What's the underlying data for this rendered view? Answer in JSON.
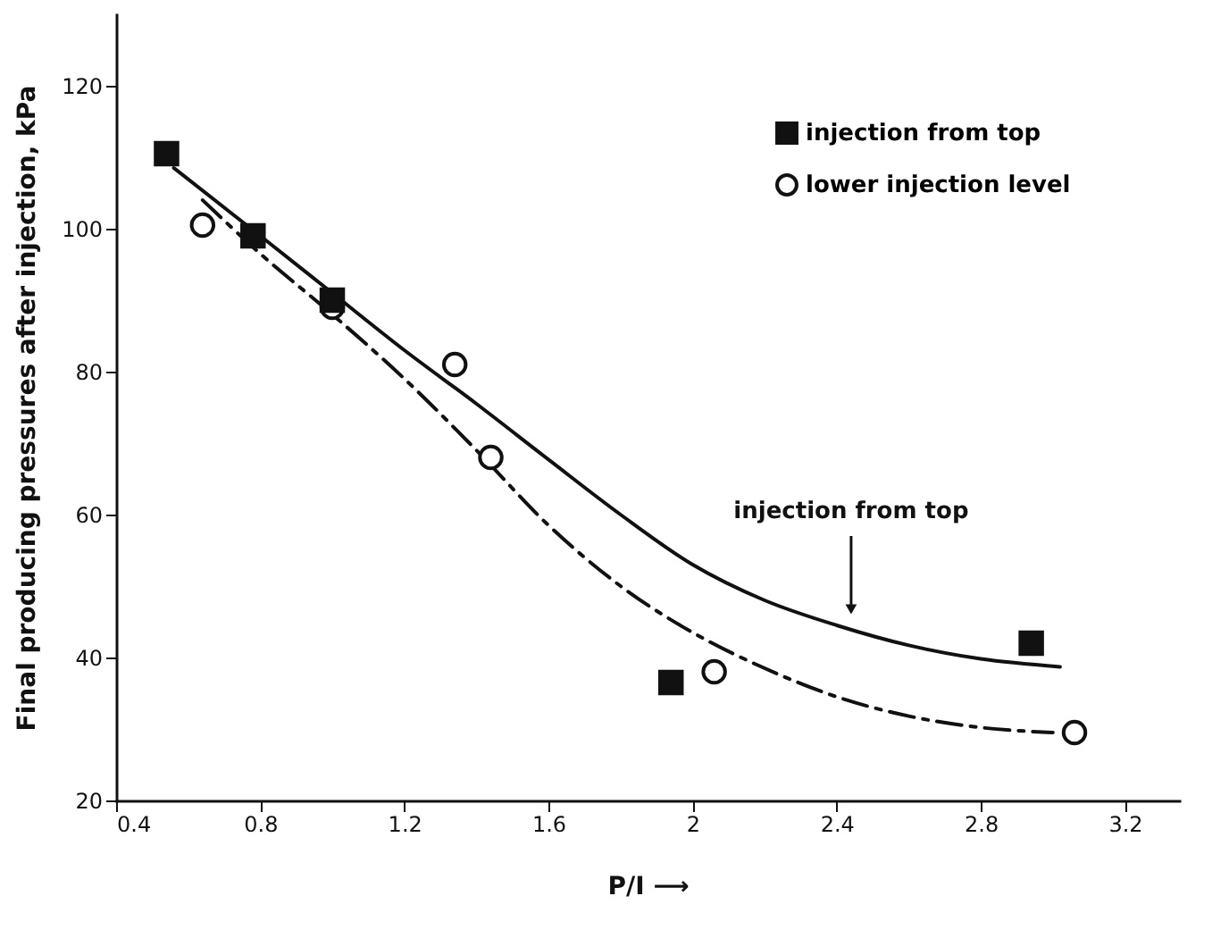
{
  "chart_data": {
    "type": "scatter",
    "xlabel": "P/I  ⟶",
    "ylabel": "Final producing pressures after injection, kPa",
    "xlim": [
      0.4,
      3.35
    ],
    "ylim": [
      20,
      130
    ],
    "xticks": [
      0.4,
      0.8,
      1.2,
      1.6,
      2.0,
      2.4,
      2.8,
      3.2
    ],
    "yticks": [
      20,
      40,
      60,
      80,
      100,
      120
    ],
    "grid": false,
    "legend": "top right",
    "series": [
      {
        "name": "injection from top",
        "color": "#111111",
        "marker": "square",
        "x": [
          0.54,
          0.78,
          1.0,
          1.94,
          2.94
        ],
        "values": [
          110.5,
          99,
          90,
          36.5,
          42
        ]
      },
      {
        "name": "lower injection level",
        "color": "#111111",
        "marker": "circle",
        "x": [
          0.64,
          1.0,
          1.34,
          1.44,
          2.06,
          3.06
        ],
        "values": [
          100.5,
          89,
          81,
          68,
          38,
          29.5
        ]
      },
      {
        "type": "line",
        "color": "#111111",
        "line_style": "solid",
        "x": [
          0.56,
          0.8,
          1.0,
          1.2,
          1.4,
          1.6,
          1.8,
          2.0,
          2.2,
          2.4,
          2.6,
          2.8,
          3.02
        ],
        "values": [
          108.5,
          99,
          91,
          83,
          75.5,
          67.7,
          60,
          53,
          48,
          44.5,
          41.7,
          39.8,
          38.7
        ]
      },
      {
        "type": "line",
        "color": "#111111",
        "line_style": "dashed",
        "x": [
          0.64,
          0.8,
          1.0,
          1.2,
          1.4,
          1.6,
          1.8,
          2.0,
          2.2,
          2.4,
          2.6,
          2.8,
          3.0
        ],
        "values": [
          104,
          96.5,
          88,
          79,
          69,
          58.5,
          50,
          43.5,
          38.5,
          34.5,
          31.8,
          30.2,
          29.5
        ]
      }
    ],
    "annotations": [
      {
        "text": "injection from top",
        "x": 2.44,
        "y": 45
      }
    ]
  }
}
